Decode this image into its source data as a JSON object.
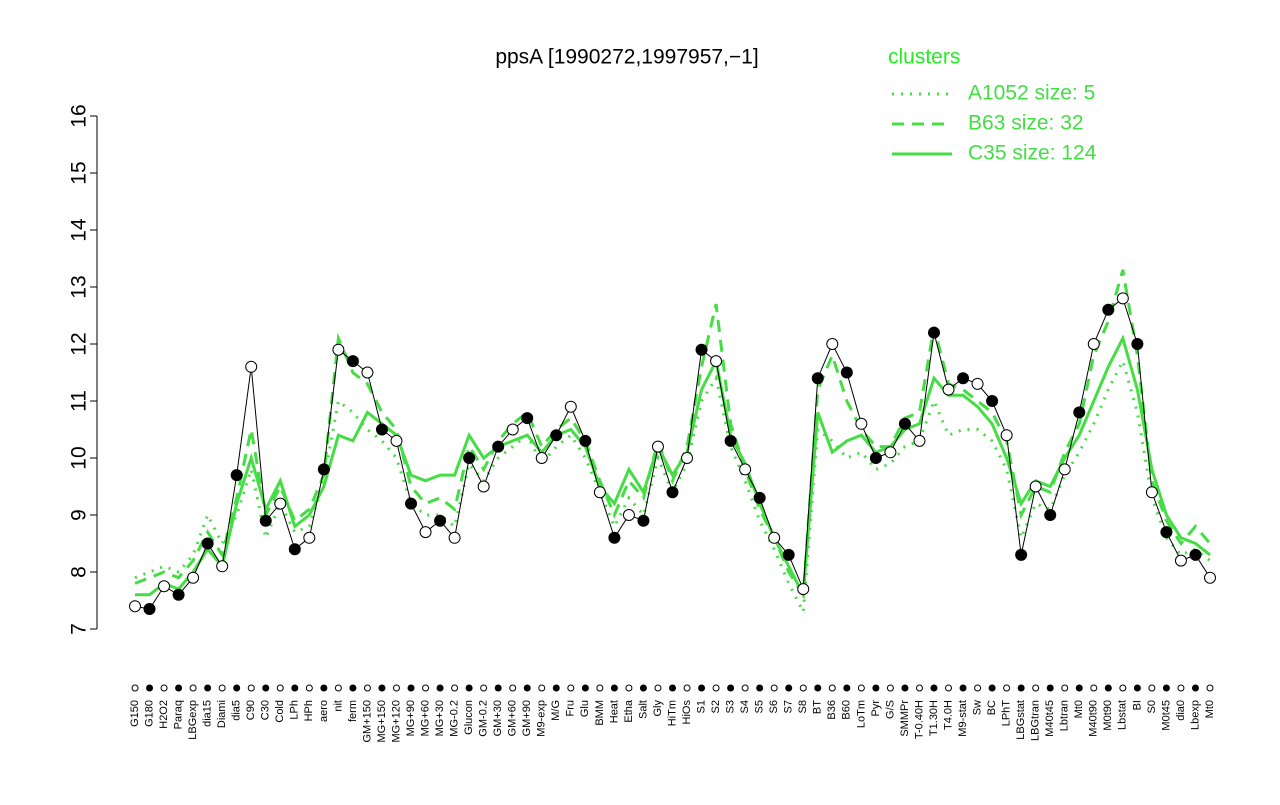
{
  "chart_data": {
    "type": "line",
    "title": "ppsA [1990272,1997957,−1]",
    "legend_title": "clusters",
    "legend_color": "#22ee22",
    "line_color": "#000000",
    "categories": [
      "G150",
      "G180",
      "H2O2",
      "Paraq",
      "LBGexp",
      "dia15",
      "Diami",
      "dia5",
      "C90",
      "C30",
      "Cold",
      "LPh",
      "HPh",
      "aero",
      "nit",
      "ferm",
      "GM+150",
      "MG+150",
      "MG+120",
      "MG+90",
      "MG+60",
      "MG+30",
      "MG-0.2",
      "Glucon",
      "GM-0.2",
      "GM+30",
      "GM+60",
      "GM+90",
      "M9-exp",
      "M/G",
      "Fru",
      "Glu",
      "BMM",
      "Heat",
      "Etha",
      "Salt",
      "Gly",
      "HiTm",
      "HiOs",
      "S1",
      "S2",
      "S3",
      "S4",
      "S5",
      "S6",
      "S7",
      "S8",
      "BT",
      "B36",
      "B60",
      "LoTm",
      "Pyr",
      "G/S",
      "SMMPr",
      "T-0.40H",
      "T1.30H",
      "T4.0H",
      "M9-stat",
      "Sw",
      "BC",
      "LPhT",
      "LBGstat",
      "LBGtran",
      "M40t45",
      "Lbtran",
      "Mt0",
      "M40t90",
      "M0t90",
      "Lbstat",
      "BI",
      "S0",
      "M0t45",
      "dia0",
      "Lbexp",
      "Mt0"
    ],
    "values": [
      7.4,
      7.35,
      7.75,
      7.6,
      7.9,
      8.5,
      8.1,
      9.7,
      11.6,
      8.9,
      9.2,
      8.4,
      8.6,
      9.8,
      11.9,
      11.7,
      11.5,
      10.5,
      10.3,
      9.2,
      8.7,
      8.9,
      8.6,
      10.0,
      9.5,
      10.2,
      10.5,
      10.7,
      10.0,
      10.4,
      10.9,
      10.3,
      9.4,
      8.6,
      9.0,
      8.9,
      10.2,
      9.4,
      10.0,
      11.9,
      11.7,
      10.3,
      9.8,
      9.3,
      8.6,
      8.3,
      7.7,
      11.4,
      12.0,
      11.5,
      10.6,
      10.0,
      10.1,
      10.6,
      10.3,
      12.2,
      11.2,
      11.4,
      11.3,
      11.0,
      10.4,
      8.3,
      9.5,
      9.0,
      9.8,
      10.8,
      12.0,
      12.6,
      12.8,
      12.0,
      9.4,
      8.7,
      8.2,
      8.3,
      7.9
    ],
    "series": [
      {
        "name": "A1052 size: 5",
        "color": "#44dd44",
        "dash": "dotted",
        "values": [
          7.9,
          8.0,
          8.1,
          8.0,
          8.3,
          9.0,
          8.5,
          9.0,
          9.8,
          8.6,
          9.2,
          8.7,
          8.8,
          9.6,
          11.0,
          10.8,
          10.5,
          10.3,
          10.0,
          9.2,
          9.0,
          9.0,
          8.8,
          9.9,
          9.6,
          10.0,
          10.2,
          10.4,
          9.9,
          10.2,
          10.4,
          10.0,
          9.4,
          8.8,
          9.3,
          9.0,
          10.0,
          9.4,
          9.9,
          11.0,
          11.4,
          10.2,
          9.6,
          8.9,
          8.4,
          7.8,
          7.3,
          10.5,
          10.3,
          10.0,
          10.1,
          9.8,
          9.9,
          10.2,
          10.3,
          11.0,
          10.4,
          10.5,
          10.5,
          10.3,
          9.8,
          8.6,
          9.2,
          9.1,
          9.7,
          10.1,
          10.6,
          11.2,
          11.7,
          10.8,
          9.3,
          8.6,
          8.3,
          8.4,
          8.2
        ]
      },
      {
        "name": "B63 size: 32",
        "color": "#44dd44",
        "dash": "dashed",
        "values": [
          7.8,
          7.9,
          8.0,
          7.9,
          8.2,
          8.7,
          8.3,
          9.3,
          10.5,
          9.0,
          9.5,
          8.9,
          9.1,
          9.7,
          12.1,
          11.5,
          11.3,
          10.8,
          10.5,
          9.5,
          9.2,
          9.3,
          9.1,
          10.2,
          9.8,
          10.3,
          10.6,
          10.8,
          10.2,
          10.5,
          10.7,
          10.3,
          9.6,
          9.0,
          9.6,
          9.3,
          10.3,
          9.6,
          10.2,
          11.6,
          12.7,
          10.6,
          9.8,
          9.1,
          8.6,
          8.0,
          7.6,
          11.2,
          11.8,
          11.0,
          10.5,
          10.2,
          10.2,
          10.7,
          10.8,
          12.3,
          11.3,
          11.2,
          11.0,
          10.8,
          10.3,
          9.0,
          9.5,
          9.4,
          10.1,
          10.6,
          11.8,
          12.4,
          13.3,
          11.8,
          9.6,
          8.9,
          8.5,
          8.8,
          8.5
        ]
      },
      {
        "name": "C35 size: 124",
        "color": "#44dd44",
        "dash": "solid",
        "values": [
          7.6,
          7.6,
          7.8,
          7.7,
          8.0,
          8.4,
          8.1,
          9.2,
          10.0,
          9.1,
          9.6,
          8.8,
          9.0,
          9.5,
          10.4,
          10.3,
          10.8,
          10.6,
          10.4,
          9.7,
          9.6,
          9.7,
          9.7,
          10.4,
          10.0,
          10.2,
          10.3,
          10.4,
          10.1,
          10.4,
          10.5,
          10.2,
          9.5,
          9.2,
          9.8,
          9.4,
          10.2,
          9.7,
          10.1,
          11.2,
          11.7,
          10.4,
          9.9,
          9.2,
          8.6,
          8.1,
          7.6,
          10.8,
          10.1,
          10.3,
          10.4,
          10.1,
          10.2,
          10.5,
          10.6,
          11.4,
          11.1,
          11.1,
          10.9,
          10.6,
          10.0,
          9.2,
          9.6,
          9.5,
          10.0,
          10.4,
          11.0,
          11.6,
          12.1,
          11.2,
          9.8,
          9.0,
          8.6,
          8.5,
          8.3
        ]
      }
    ],
    "ylim": [
      7,
      16
    ],
    "yticks": [
      7,
      8,
      9,
      10,
      11,
      12,
      13,
      14,
      15,
      16
    ]
  }
}
